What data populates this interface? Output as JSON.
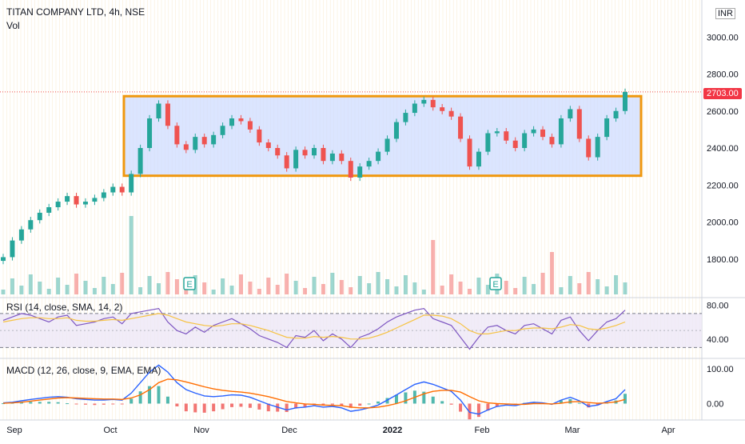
{
  "header": {
    "symbol": "TITAN COMPANY LTD, 4h, NSE",
    "vol_label": "Vol"
  },
  "currency": "INR",
  "last_price_label": "2703.00",
  "colors": {
    "up": "#26a69a",
    "down": "#ef5350",
    "rect_fill": "#cfdcff",
    "rect_border": "#f0980f",
    "rsi_line": "#7e57c2",
    "rsi_sma": "#f6c343",
    "rsi_band": "#ede7f6",
    "macd_line": "#2962ff",
    "signal_line": "#ff6d00",
    "hist_up": "#26a69a",
    "hist_down": "#ef5350",
    "grid": "#f5deb3",
    "axis_text": "#131722"
  },
  "chart_data": [
    {
      "type": "candlestick",
      "title": "TITAN COMPANY LTD, 4h, NSE",
      "ylim": [
        1600,
        3200
      ],
      "yticks": [
        "1600.00",
        "1800.00",
        "2000.00",
        "2200.00",
        "2400.00",
        "2600.00",
        "2800.00",
        "3000.00",
        "3200.00"
      ],
      "xticks": [
        "Sep",
        "Oct",
        "Nov",
        "Dec",
        "2022",
        "Feb",
        "Mar",
        "Apr"
      ],
      "close_series": [
        {
          "x": "Sep",
          "y": 1810
        },
        {
          "x": "Sep",
          "y": 1900
        },
        {
          "x": "Sep",
          "y": 1960
        },
        {
          "x": "Sep",
          "y": 2010
        },
        {
          "x": "Sep",
          "y": 2050
        },
        {
          "x": "Sep",
          "y": 2080
        },
        {
          "x": "Sep",
          "y": 2110
        },
        {
          "x": "Sep",
          "y": 2140
        },
        {
          "x": "Sep",
          "y": 2095
        },
        {
          "x": "Sep",
          "y": 2110
        },
        {
          "x": "Sep",
          "y": 2130
        },
        {
          "x": "Sep",
          "y": 2160
        },
        {
          "x": "Sep",
          "y": 2190
        },
        {
          "x": "Oct",
          "y": 2160
        },
        {
          "x": "Oct",
          "y": 2260
        },
        {
          "x": "Oct",
          "y": 2400
        },
        {
          "x": "Oct",
          "y": 2560
        },
        {
          "x": "Oct",
          "y": 2640
        },
        {
          "x": "Oct",
          "y": 2520
        },
        {
          "x": "Oct",
          "y": 2420
        },
        {
          "x": "Oct",
          "y": 2390
        },
        {
          "x": "Oct",
          "y": 2460
        },
        {
          "x": "Oct",
          "y": 2420
        },
        {
          "x": "Nov",
          "y": 2470
        },
        {
          "x": "Nov",
          "y": 2520
        },
        {
          "x": "Nov",
          "y": 2560
        },
        {
          "x": "Nov",
          "y": 2545
        },
        {
          "x": "Nov",
          "y": 2500
        },
        {
          "x": "Nov",
          "y": 2430
        },
        {
          "x": "Nov",
          "y": 2400
        },
        {
          "x": "Dec",
          "y": 2360
        },
        {
          "x": "Dec",
          "y": 2290
        },
        {
          "x": "Dec",
          "y": 2390
        },
        {
          "x": "Dec",
          "y": 2360
        },
        {
          "x": "Dec",
          "y": 2400
        },
        {
          "x": "Dec",
          "y": 2330
        },
        {
          "x": "Dec",
          "y": 2370
        },
        {
          "x": "Dec",
          "y": 2330
        },
        {
          "x": "Dec",
          "y": 2240
        },
        {
          "x": "Dec",
          "y": 2300
        },
        {
          "x": "Dec",
          "y": 2330
        },
        {
          "x": "Dec",
          "y": 2380
        },
        {
          "x": "2022",
          "y": 2450
        },
        {
          "x": "2022",
          "y": 2540
        },
        {
          "x": "2022",
          "y": 2590
        },
        {
          "x": "2022",
          "y": 2640
        },
        {
          "x": "2022",
          "y": 2660
        },
        {
          "x": "2022",
          "y": 2620
        },
        {
          "x": "2022",
          "y": 2600
        },
        {
          "x": "2022",
          "y": 2570
        },
        {
          "x": "2022",
          "y": 2450
        },
        {
          "x": "Feb",
          "y": 2300
        },
        {
          "x": "Feb",
          "y": 2380
        },
        {
          "x": "Feb",
          "y": 2480
        },
        {
          "x": "Feb",
          "y": 2490
        },
        {
          "x": "Feb",
          "y": 2440
        },
        {
          "x": "Feb",
          "y": 2400
        },
        {
          "x": "Feb",
          "y": 2480
        },
        {
          "x": "Feb",
          "y": 2500
        },
        {
          "x": "Feb",
          "y": 2460
        },
        {
          "x": "Feb",
          "y": 2420
        },
        {
          "x": "Mar",
          "y": 2560
        },
        {
          "x": "Mar",
          "y": 2610
        },
        {
          "x": "Mar",
          "y": 2450
        },
        {
          "x": "Mar",
          "y": 2350
        },
        {
          "x": "Mar",
          "y": 2460
        },
        {
          "x": "Mar",
          "y": 2560
        },
        {
          "x": "Mar",
          "y": 2600
        },
        {
          "x": "Mar",
          "y": 2703
        }
      ],
      "annotations": [
        "range box",
        "E",
        "E"
      ]
    },
    {
      "type": "line",
      "title": "RSI (14, close, SMA, 14, 2)",
      "ylim": [
        20,
        85
      ],
      "yticks": [
        "40.00",
        "80.00"
      ],
      "bands": [
        30,
        70
      ],
      "series": [
        {
          "name": "RSI",
          "values": [
            62,
            66,
            70,
            68,
            64,
            60,
            66,
            68,
            56,
            58,
            60,
            64,
            66,
            58,
            70,
            72,
            74,
            76,
            60,
            50,
            46,
            54,
            48,
            56,
            60,
            64,
            58,
            52,
            44,
            40,
            36,
            30,
            44,
            42,
            50,
            38,
            46,
            40,
            30,
            42,
            46,
            52,
            60,
            66,
            70,
            74,
            76,
            64,
            60,
            56,
            42,
            28,
            42,
            54,
            56,
            50,
            46,
            56,
            58,
            52,
            46,
            62,
            66,
            50,
            38,
            50,
            60,
            64,
            74
          ]
        },
        {
          "name": "SMA",
          "values": [
            60,
            62,
            64,
            65,
            65,
            64,
            64,
            65,
            62,
            61,
            61,
            62,
            63,
            62,
            64,
            66,
            68,
            70,
            68,
            64,
            60,
            58,
            56,
            55,
            56,
            58,
            58,
            56,
            53,
            50,
            46,
            42,
            41,
            41,
            43,
            42,
            43,
            42,
            40,
            40,
            41,
            44,
            48,
            53,
            58,
            63,
            68,
            68,
            67,
            64,
            58,
            50,
            46,
            46,
            48,
            50,
            50,
            52,
            53,
            53,
            52,
            54,
            57,
            56,
            52,
            51,
            53,
            56,
            60
          ]
        }
      ]
    },
    {
      "type": "bar",
      "title": "MACD (12, 26, close, 9, EMA, EMA)",
      "ylim": [
        -40,
        120
      ],
      "yticks": [
        "0.00",
        "100.00"
      ],
      "series": [
        {
          "name": "MACD",
          "values": [
            2,
            4,
            8,
            12,
            15,
            18,
            20,
            18,
            14,
            12,
            10,
            10,
            12,
            10,
            30,
            60,
            90,
            110,
            90,
            60,
            40,
            30,
            22,
            20,
            22,
            25,
            24,
            18,
            8,
            -2,
            -10,
            -18,
            -12,
            -10,
            -6,
            -10,
            -8,
            -12,
            -22,
            -18,
            -12,
            -4,
            10,
            25,
            40,
            55,
            62,
            55,
            45,
            35,
            10,
            -25,
            -30,
            -18,
            -8,
            -4,
            -6,
            0,
            4,
            2,
            -2,
            10,
            18,
            8,
            -8,
            -4,
            6,
            14,
            40
          ]
        },
        {
          "name": "Signal",
          "values": [
            1,
            2,
            4,
            7,
            10,
            13,
            16,
            17,
            16,
            15,
            14,
            13,
            13,
            12,
            16,
            25,
            40,
            60,
            70,
            68,
            62,
            55,
            48,
            42,
            38,
            35,
            33,
            30,
            25,
            20,
            13,
            6,
            2,
            -1,
            -2,
            -4,
            -5,
            -6,
            -10,
            -12,
            -12,
            -10,
            -6,
            0,
            8,
            18,
            28,
            35,
            38,
            38,
            33,
            20,
            8,
            2,
            0,
            -1,
            -2,
            -2,
            0,
            0,
            -1,
            1,
            5,
            6,
            3,
            1,
            2,
            5,
            12
          ]
        }
      ]
    }
  ]
}
